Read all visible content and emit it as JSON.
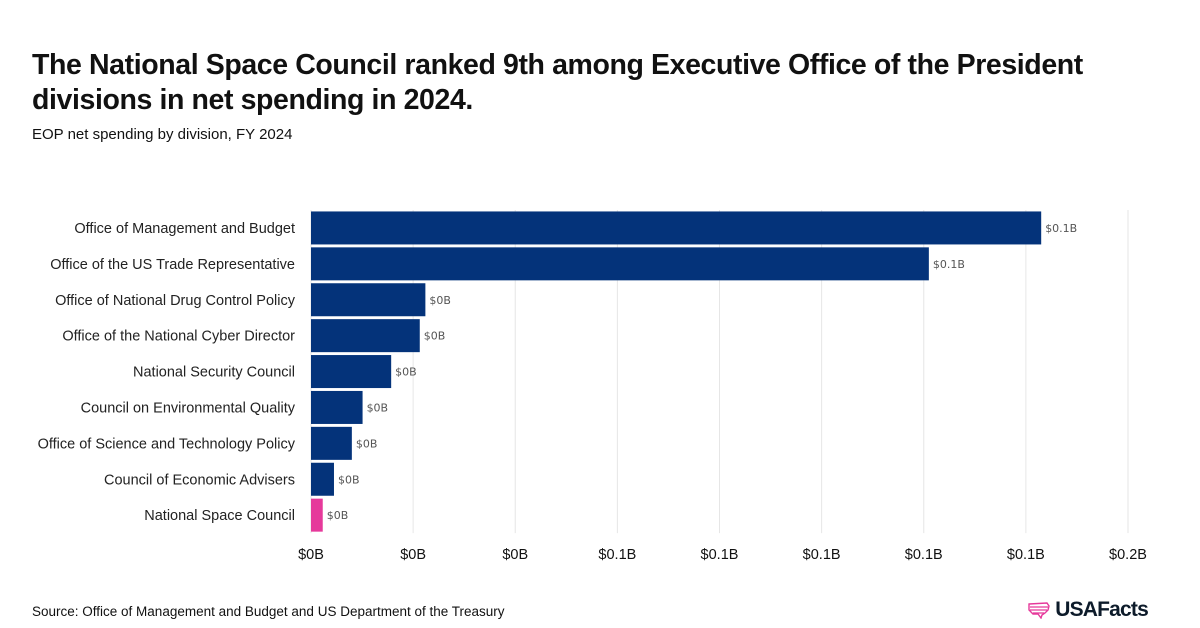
{
  "header": {
    "title": "The National Space Council ranked 9th among Executive Office of the President divisions in net spending in 2024.",
    "subtitle": "EOP net spending by division, FY 2024"
  },
  "footer": {
    "source": "Source: Office of Management and Budget and US Department of the Treasury",
    "brand": "USAFacts"
  },
  "colors": {
    "bar": "#04337a",
    "highlight": "#e6399b",
    "grid": "#e6e6e6",
    "logo_mark": "#e6399b"
  },
  "icons": {
    "logo": "usa-map-stripes-icon"
  },
  "chart_data": {
    "type": "bar",
    "orientation": "horizontal",
    "title": "The National Space Council ranked 9th among Executive Office of the President divisions in net spending in 2024.",
    "subtitle": "EOP net spending by division, FY 2024",
    "xlabel": "",
    "ylabel": "",
    "unit": "billions of dollars",
    "categories": [
      "Office of Management and Budget",
      "Office of the US Trade Representative",
      "Office of National Drug Control Policy",
      "Office of the National Cyber Director",
      "National Security Council",
      "Council on Environmental Quality",
      "Office of Science and Technology Policy",
      "Council of Economic Advisers",
      "National Space Council"
    ],
    "values": [
      0.143,
      0.121,
      0.0224,
      0.0213,
      0.0157,
      0.0101,
      0.008,
      0.0045,
      0.0023
    ],
    "value_labels": [
      "$0.1B",
      "$0.1B",
      "$0B",
      "$0B",
      "$0B",
      "$0B",
      "$0B",
      "$0B",
      "$0B"
    ],
    "highlight_category": "National Space Council",
    "xlim": [
      0,
      0.16
    ],
    "xticks": [
      0,
      0.02,
      0.04,
      0.06,
      0.08,
      0.1,
      0.12,
      0.14,
      0.16
    ],
    "xtick_labels": [
      "$0B",
      "$0B",
      "$0B",
      "$0.1B",
      "$0.1B",
      "$0.1B",
      "$0.1B",
      "$0.1B",
      "$0.2B"
    ],
    "grid": true,
    "legend": "none"
  }
}
